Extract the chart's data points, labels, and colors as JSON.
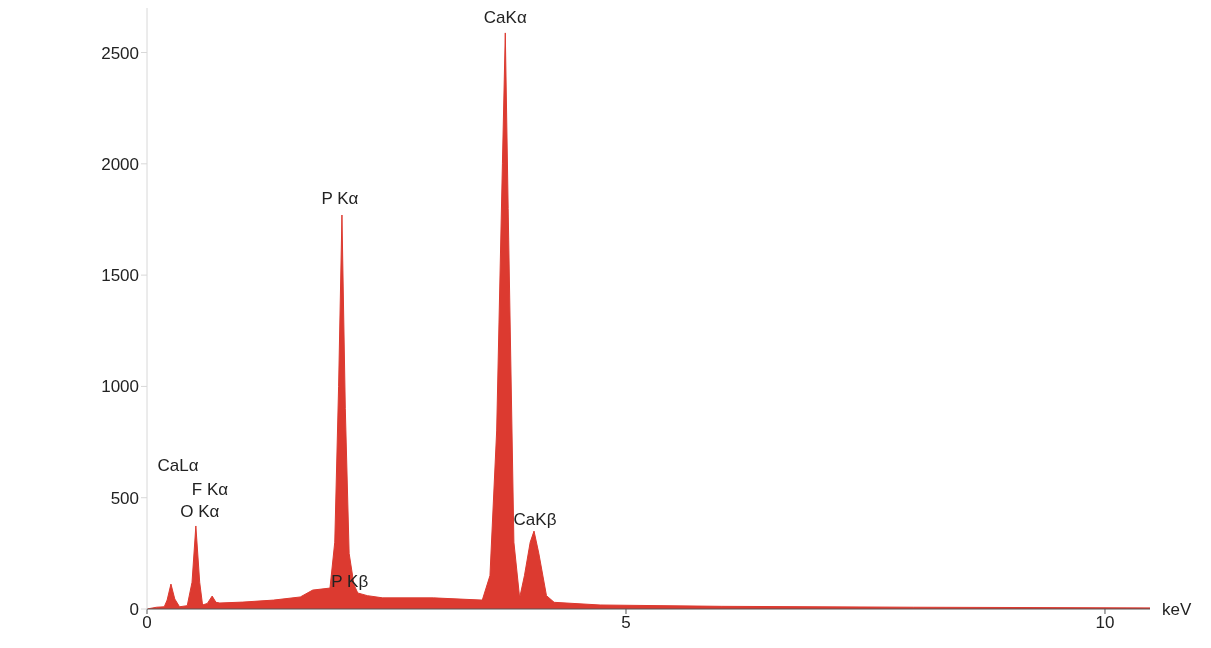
{
  "chart_data": {
    "type": "area",
    "xlabel": "keV",
    "x": [
      0,
      0.1,
      0.18,
      0.21,
      0.25,
      0.29,
      0.34,
      0.42,
      0.47,
      0.51,
      0.55,
      0.58,
      0.63,
      0.68,
      0.72,
      0.76,
      1.0,
      1.32,
      1.6,
      1.73,
      1.91,
      1.96,
      2.0,
      2.035,
      2.07,
      2.11,
      2.16,
      2.2,
      2.3,
      2.46,
      2.99,
      3.5,
      3.58,
      3.65,
      3.71,
      3.74,
      3.77,
      3.83,
      3.89,
      3.94,
      4.0,
      4.04,
      4.09,
      4.17,
      4.25,
      4.73,
      6.0,
      8.0,
      10.47
    ],
    "series": [
      {
        "color": "#dc3a30",
        "values": [
          0,
          8,
          10,
          40,
          112,
          45,
          10,
          15,
          120,
          373,
          120,
          18,
          25,
          58,
          30,
          27,
          31,
          40,
          54,
          85,
          94,
          300,
          1000,
          1770,
          900,
          250,
          110,
          72,
          60,
          50,
          50,
          40,
          150,
          800,
          2000,
          2588,
          1800,
          300,
          50,
          150,
          300,
          350,
          250,
          60,
          30,
          18,
          12,
          8,
          5
        ]
      }
    ],
    "annotations": [
      {
        "text": "CaKα",
        "x": 3.74,
        "y": 2588
      },
      {
        "text": "P Kα",
        "x": 2.035,
        "y": 1770
      },
      "CaLα",
      "F Kα",
      {
        "text": "O Kα",
        "x": 0.51,
        "y": 373
      },
      {
        "text": "CaKβ",
        "x": 4.04,
        "y": 350
      },
      {
        "text": "P Kβ",
        "x": 2.2,
        "y": 72
      }
    ],
    "xlim": [
      0,
      10.47
    ],
    "xticks": [
      0,
      5,
      10
    ],
    "ylim": [
      0,
      2700
    ],
    "yticks": [
      0,
      500,
      1000,
      1500,
      2000,
      2500
    ],
    "grid": false
  }
}
